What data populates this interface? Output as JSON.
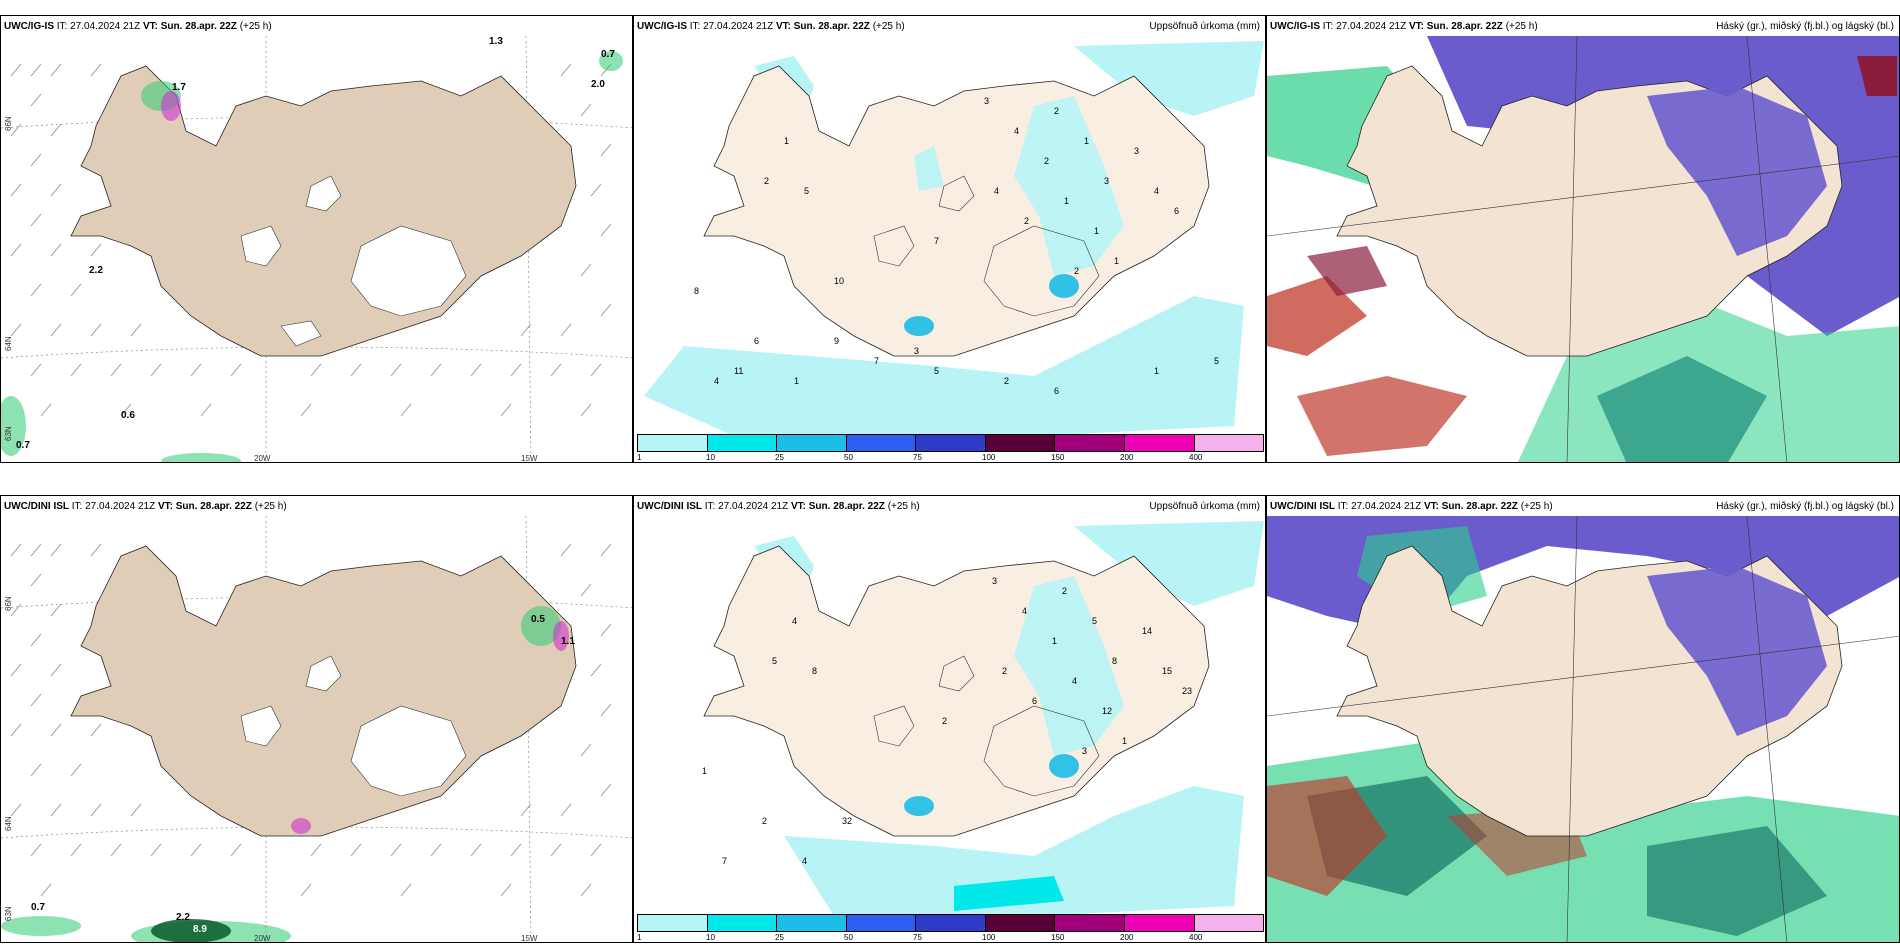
{
  "rows": [
    {
      "model": "UWC/IG-IS",
      "it_label": "IT:",
      "it_value": "27.04.2024 21Z",
      "vt_label": "VT:",
      "vt_value": "Sun. 28.apr. 22Z",
      "lead": "(+25 h)",
      "wind_values": [
        "1.3",
        "1.7",
        "2.0",
        "0.7",
        "2.2",
        "0.6",
        "0.7"
      ],
      "lat_labels": [
        "66N",
        "64N",
        "63N"
      ],
      "lon_labels": [
        "20W",
        "15W"
      ],
      "precip_values": [
        "3",
        "2",
        "4",
        "1",
        "2",
        "3",
        "4",
        "1",
        "2",
        "1",
        "3",
        "4",
        "6",
        "1",
        "2",
        "7",
        "1",
        "2",
        "5",
        "8",
        "6",
        "9",
        "4",
        "1",
        "3",
        "5",
        "2",
        "6",
        "1",
        "5",
        "7",
        "10",
        "11"
      ]
    },
    {
      "model": "UWC/DINI ISL",
      "it_label": "IT:",
      "it_value": "27.04.2024 21Z",
      "vt_label": "VT:",
      "vt_value": "Sun. 28.apr. 22Z",
      "lead": "(+25 h)",
      "wind_values": [
        "0.5",
        "1.1",
        "0.7",
        "2.2",
        "8.9"
      ],
      "lat_labels": [
        "66N",
        "64N",
        "63N"
      ],
      "lon_labels": [
        "20W",
        "15W"
      ],
      "precip_values": [
        "3",
        "2",
        "4",
        "5",
        "1",
        "8",
        "2",
        "4",
        "6",
        "12",
        "14",
        "15",
        "23",
        "1",
        "3",
        "2",
        "4",
        "5",
        "8",
        "1",
        "2",
        "32",
        "7",
        "4"
      ]
    }
  ],
  "precip_title": "Uppsöfnuð úrkoma (mm)",
  "cloud_title": "Háský (gr.), miðský (fj.bl.) og lágský (bl.)",
  "colorbar": {
    "ticks": [
      "1",
      "10",
      "25",
      "50",
      "75",
      "100",
      "150",
      "200",
      "400"
    ],
    "colors": [
      "#b3f5f5",
      "#00e8ea",
      "#1cbde8",
      "#2b5ff0",
      "#2f3ac8",
      "#5a0038",
      "#a2007a",
      "#ee00b4",
      "#f5b0ee"
    ]
  },
  "colors": {
    "land": "#f2e3d2",
    "land_panel1": "#e0cdb8",
    "sea_precip": "#b8f4f6",
    "high_cloud": "#6a5ccd",
    "mid_cloud": "#2ccf8a",
    "low_cloud": "#c0392b"
  }
}
